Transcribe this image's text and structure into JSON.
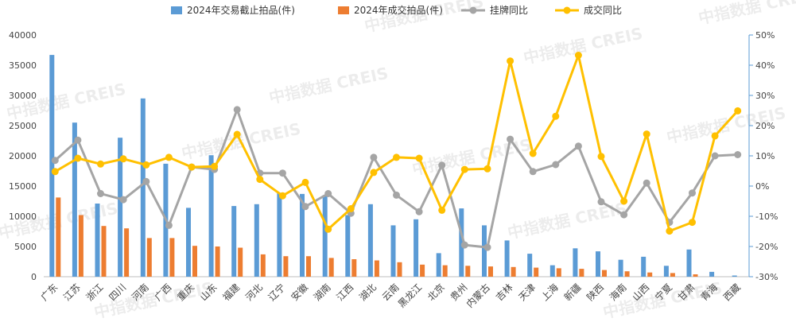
{
  "watermark": "中指数据 CREIS",
  "chart_data": {
    "type": "bar+line",
    "categories": [
      "广东",
      "江苏",
      "浙江",
      "四川",
      "河南",
      "广西",
      "重庆",
      "山东",
      "福建",
      "河北",
      "辽宁",
      "安徽",
      "湖南",
      "江西",
      "湖北",
      "云南",
      "黑龙江",
      "北京",
      "贵州",
      "内蒙古",
      "吉林",
      "天津",
      "上海",
      "新疆",
      "陕西",
      "海南",
      "山西",
      "宁夏",
      "甘肃",
      "青海",
      "西藏"
    ],
    "series": [
      {
        "name": "2024年交易截止拍品(件)",
        "kind": "bar",
        "axis": "left",
        "color": "#5B9BD5",
        "values": [
          36700,
          25500,
          12100,
          23000,
          29500,
          18700,
          11400,
          20100,
          11700,
          12000,
          13900,
          13700,
          13500,
          10200,
          12000,
          8500,
          9500,
          3900,
          11300,
          8500,
          6000,
          3800,
          1900,
          4700,
          4200,
          2800,
          3300,
          1800,
          4500,
          800,
          200
        ]
      },
      {
        "name": "2024年成交拍品(件)",
        "kind": "bar",
        "axis": "left",
        "color": "#ED7D31",
        "values": [
          13100,
          10200,
          8400,
          8000,
          6400,
          6400,
          5100,
          5000,
          4800,
          3700,
          3400,
          3400,
          3100,
          2900,
          2700,
          2400,
          2000,
          1900,
          1800,
          1700,
          1600,
          1500,
          1400,
          1300,
          1100,
          900,
          700,
          600,
          400,
          0,
          0
        ]
      },
      {
        "name": "挂牌同比",
        "kind": "line",
        "axis": "right",
        "color": "#A5A5A5",
        "values": [
          8.5,
          15.2,
          -2.5,
          -4.5,
          1.5,
          -13,
          6.3,
          5.5,
          25.3,
          4.3,
          4.3,
          -6.8,
          -2.5,
          -9,
          9.5,
          -3,
          -8.5,
          6.9,
          -19.5,
          -20.3,
          15.5,
          4.8,
          7.1,
          13.2,
          -5.2,
          -9.5,
          1,
          -12,
          -2.3,
          10,
          10.4
        ]
      },
      {
        "name": "成交同比",
        "kind": "line",
        "axis": "right",
        "color": "#FFC000",
        "values": [
          4.8,
          9.2,
          7.3,
          9,
          7,
          9.5,
          6.3,
          6.5,
          17.1,
          2.2,
          -3.2,
          1.2,
          -14.3,
          -7.5,
          4.5,
          9.5,
          9.2,
          -8,
          5.5,
          5.7,
          41.4,
          10.8,
          23.1,
          43.3,
          9.8,
          -5,
          17.2,
          -14.9,
          -12,
          16.6,
          24.9
        ]
      }
    ],
    "y_left": {
      "min": 0,
      "max": 40000,
      "ticks": [
        "0",
        "5000",
        "10000",
        "15000",
        "20000",
        "25000",
        "30000",
        "35000",
        "40000"
      ]
    },
    "y_right": {
      "min": -30,
      "max": 50,
      "ticks": [
        "-30%",
        "-20%",
        "-10%",
        "0%",
        "10%",
        "20%",
        "30%",
        "40%",
        "50%"
      ]
    },
    "legend_position": "top",
    "grid": false
  }
}
